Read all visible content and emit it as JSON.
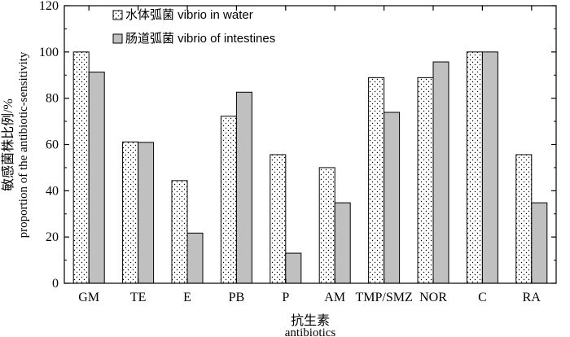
{
  "chart_data": {
    "type": "bar",
    "categories": [
      "GM",
      "TE",
      "E",
      "PB",
      "P",
      "AM",
      "TMP/SMZ",
      "NOR",
      "C",
      "RA"
    ],
    "series": [
      {
        "name": "水体弧菌  vibrio in water",
        "values": [
          100,
          61.1,
          44.4,
          72.2,
          55.6,
          50,
          88.9,
          88.9,
          100,
          55.6
        ],
        "fill": "dots"
      },
      {
        "name": "肠道弧菌 vibrio of intestines",
        "values": [
          91.3,
          60.9,
          21.7,
          82.6,
          13.0,
          34.8,
          73.9,
          95.7,
          100,
          34.8
        ],
        "fill": "#c0c0c0"
      }
    ],
    "ylim": [
      0,
      120
    ],
    "yticks": [
      0,
      20,
      40,
      60,
      80,
      100,
      120
    ],
    "ylabel_cn": "敏感菌株比例/%",
    "ylabel_en": "proportion of the antibiotic-sensitivity",
    "xlabel_cn": "抗生素",
    "xlabel_en": "antibiotics",
    "legend_position": "top-left",
    "grid": false
  }
}
